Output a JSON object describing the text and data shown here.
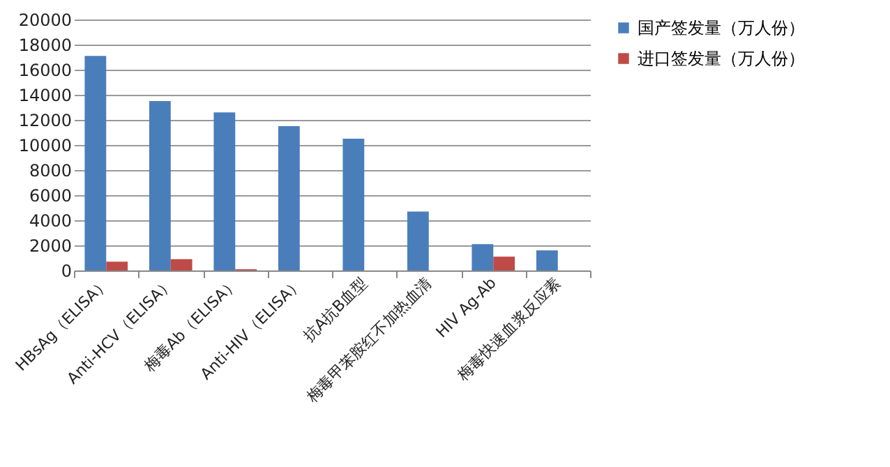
{
  "chart_data": {
    "type": "bar",
    "categories": [
      "HBsAg（ELISA）",
      "Anti-HCV（ELISA）",
      "梅毒Ab（ELISA）",
      "Anti-HIV（ELISA）",
      "抗A抗B血型",
      "梅毒甲苯胺红不加热血清",
      "HIV Ag-Ab",
      "梅毒快速血浆反应素"
    ],
    "series": [
      {
        "name": "国产签发量（万人份）",
        "color": "#4a7ebb",
        "values": [
          17100,
          13500,
          12600,
          11500,
          10500,
          4700,
          2100,
          1600
        ]
      },
      {
        "name": "进口签发量（万人份）",
        "color": "#be4b48",
        "values": [
          700,
          900,
          100,
          null,
          null,
          null,
          1100,
          null
        ]
      }
    ],
    "ylim": [
      0,
      20000
    ],
    "yticks": [
      0,
      2000,
      4000,
      6000,
      8000,
      10000,
      12000,
      14000,
      16000,
      18000,
      20000
    ],
    "grid": "y",
    "legend": "right"
  }
}
